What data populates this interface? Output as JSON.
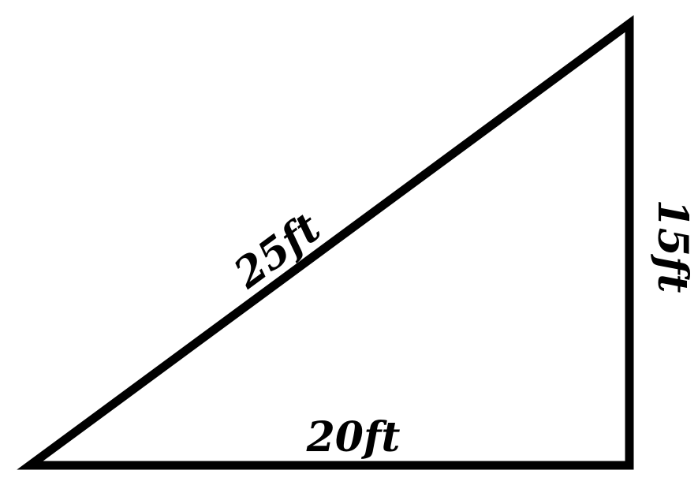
{
  "triangle": {
    "hypotenuse_label": "25ft",
    "base_label": "20ft",
    "height_label": "15ft",
    "stroke_color": "#000000",
    "fill_color": "#ffffff"
  }
}
